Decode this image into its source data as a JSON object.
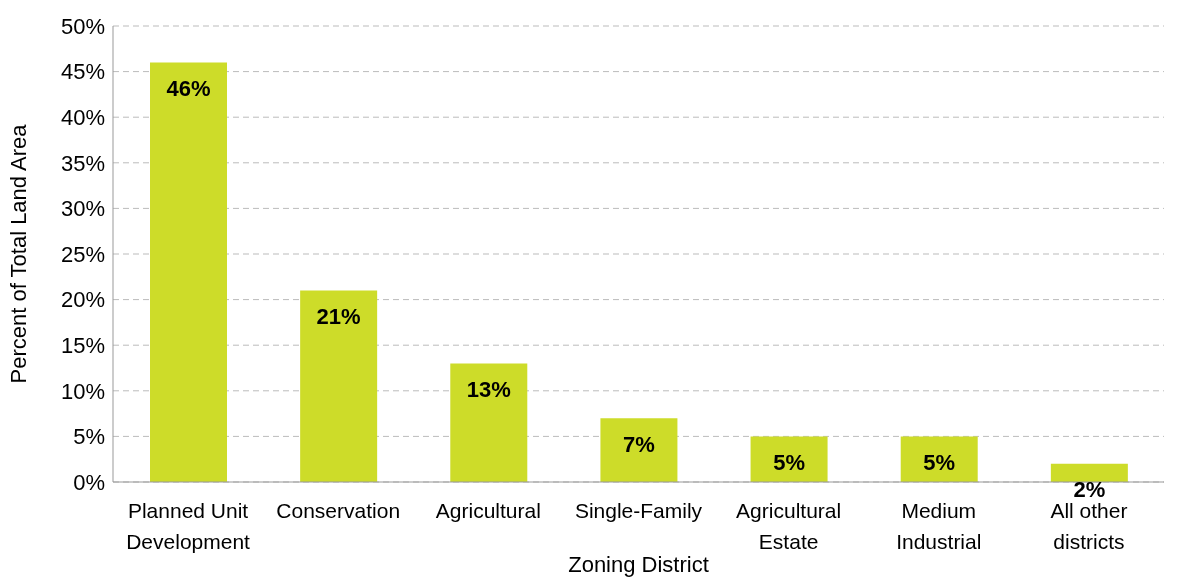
{
  "chart_data": {
    "type": "bar",
    "xlabel": "Zoning District",
    "ylabel": "Percent of Total Land Area",
    "categories": [
      "Planned Unit Development",
      "Conservation",
      "Agricultural",
      "Single-Family",
      "Agricultural Estate",
      "Medium Industrial",
      "All other districts"
    ],
    "values": [
      46,
      21,
      13,
      7,
      5,
      5,
      2
    ],
    "value_labels": [
      "46%",
      "21%",
      "13%",
      "7%",
      "5%",
      "5%",
      "2%"
    ],
    "color": "#cddc29",
    "ylim": [
      0,
      50
    ],
    "yticks": [
      {
        "value": 0,
        "label": "0%"
      },
      {
        "value": 5,
        "label": "5%"
      },
      {
        "value": 10,
        "label": "10%"
      },
      {
        "value": 15,
        "label": "15%"
      },
      {
        "value": 20,
        "label": "20%"
      },
      {
        "value": 25,
        "label": "25%"
      },
      {
        "value": 30,
        "label": "30%"
      },
      {
        "value": 35,
        "label": "35%"
      },
      {
        "value": 40,
        "label": "40%"
      },
      {
        "value": 45,
        "label": "45%"
      },
      {
        "value": 50,
        "label": "50%"
      }
    ],
    "grid": "y"
  }
}
